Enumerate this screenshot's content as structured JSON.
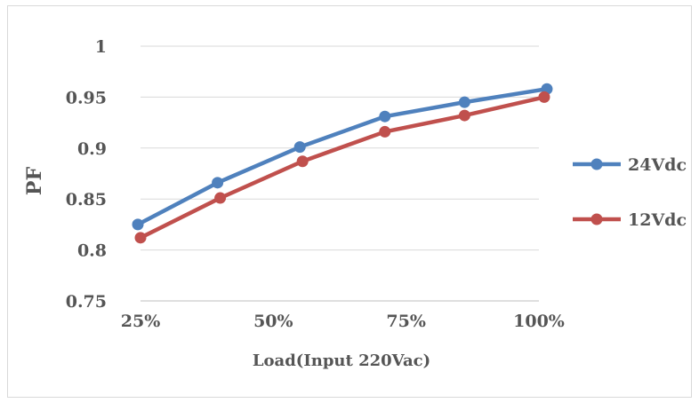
{
  "chart_data": {
    "type": "line",
    "xlabel": "Load(Input 220Vac)",
    "ylabel": "PF",
    "x_tick_labels": [
      "25%",
      "50%",
      "75%",
      "100%"
    ],
    "y_tick_labels": [
      "0.75",
      "0.8",
      "0.85",
      "0.9",
      "0.95",
      "1"
    ],
    "xlim": [
      25,
      100
    ],
    "ylim": [
      0.75,
      1.0
    ],
    "grid": "horizontal",
    "legend_position": "right",
    "series": [
      {
        "name": "24Vdc",
        "color": "#4f81bd",
        "x": [
          24.5,
          39.5,
          55,
          71,
          86,
          101.5
        ],
        "y": [
          0.825,
          0.866,
          0.901,
          0.931,
          0.945,
          0.958
        ]
      },
      {
        "name": "12Vdc",
        "color": "#c0504d",
        "x": [
          25,
          40,
          55.5,
          71,
          86,
          101
        ],
        "y": [
          0.812,
          0.851,
          0.887,
          0.916,
          0.932,
          0.95
        ]
      }
    ]
  }
}
